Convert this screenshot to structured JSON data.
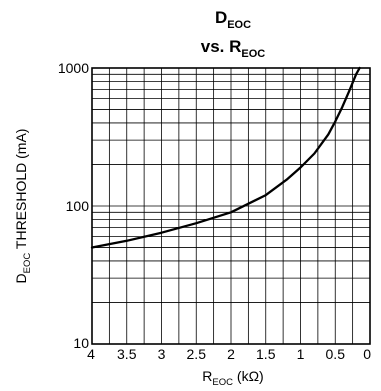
{
  "chart_data": {
    "type": "line",
    "title": {
      "line1_main": "D",
      "line1_sub": "EOC",
      "line2_main": "vs. R",
      "line2_sub": "EOC"
    },
    "xlabel": {
      "main": "R",
      "sub": "EOC",
      "rest": " (kΩ)"
    },
    "ylabel": {
      "main": "D",
      "sub": "EOC",
      "rest": " THRESHOLD (mA)"
    },
    "x_reversed": true,
    "xlim": [
      4,
      0
    ],
    "ylim": [
      10,
      1000
    ],
    "y_scale": "log",
    "grid": true,
    "x_ticks": [
      {
        "value": 4,
        "label": "4"
      },
      {
        "value": 3.5,
        "label": "3.5"
      },
      {
        "value": 3,
        "label": "3"
      },
      {
        "value": 2.5,
        "label": "2.5"
      },
      {
        "value": 2,
        "label": "2"
      },
      {
        "value": 1.5,
        "label": "1.5"
      },
      {
        "value": 1,
        "label": "1"
      },
      {
        "value": 0.5,
        "label": "0.5"
      },
      {
        "value": 0,
        "label": "0"
      }
    ],
    "y_ticks": [
      {
        "value": 10,
        "label": "10"
      },
      {
        "value": 100,
        "label": "100"
      },
      {
        "value": 1000,
        "label": "1000"
      }
    ],
    "series": [
      {
        "x": [
          4.0,
          3.5,
          3.0,
          2.5,
          2.0,
          1.5,
          1.2,
          1.0,
          0.8,
          0.6,
          0.5,
          0.4,
          0.3,
          0.2,
          0.15
        ],
        "y": [
          50,
          56,
          64,
          75,
          90,
          120,
          155,
          190,
          240,
          330,
          410,
          520,
          680,
          900,
          1000
        ],
        "color": "#000000"
      }
    ]
  }
}
